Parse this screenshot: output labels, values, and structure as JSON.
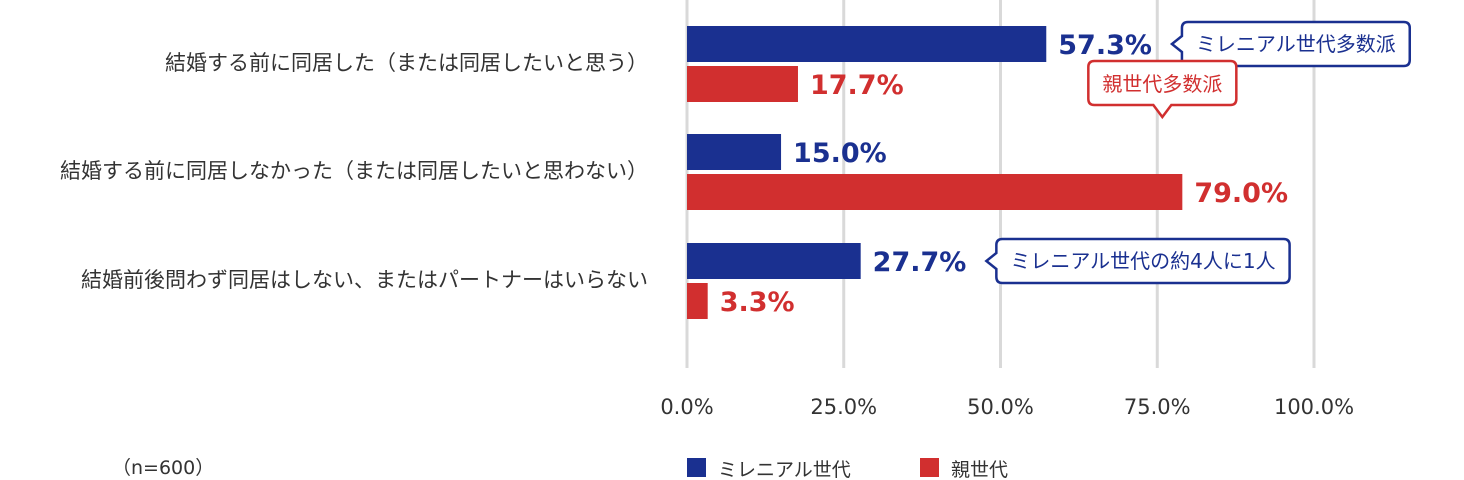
{
  "chart_data": {
    "type": "bar",
    "orientation": "horizontal",
    "categories": [
      "結婚する前に同居した（または同居したいと思う）",
      "結婚する前に同居しなかった（または同居したいと思わない）",
      "結婚前後問わず同居はしない、またはパートナーはいらない"
    ],
    "series": [
      {
        "name": "ミレニアル世代",
        "color": "#1a3090",
        "values": [
          57.3,
          15.0,
          27.7
        ],
        "labels": [
          "57.3%",
          "15.0%",
          "27.7%"
        ]
      },
      {
        "name": "親世代",
        "color": "#d12f2f",
        "values": [
          17.7,
          79.0,
          3.3
        ],
        "labels": [
          "17.7%",
          "79.0%",
          "3.3%"
        ]
      }
    ],
    "xlim": [
      0,
      100
    ],
    "xticks": [
      "0.0%",
      "25.0%",
      "50.0%",
      "75.0%",
      "100.0%"
    ],
    "grid": true,
    "legend_position": "bottom",
    "annotations": [
      {
        "text": "ミレニアル世代多数派",
        "category": 0,
        "series": 0,
        "color": "#1a3090"
      },
      {
        "text": "親世代多数派",
        "category": 1,
        "series": 1,
        "color": "#d12f2f"
      },
      {
        "text": "ミレニアル世代の約4人に1人",
        "category": 2,
        "series": 0,
        "color": "#1a3090"
      }
    ],
    "note": "（n=600）"
  }
}
